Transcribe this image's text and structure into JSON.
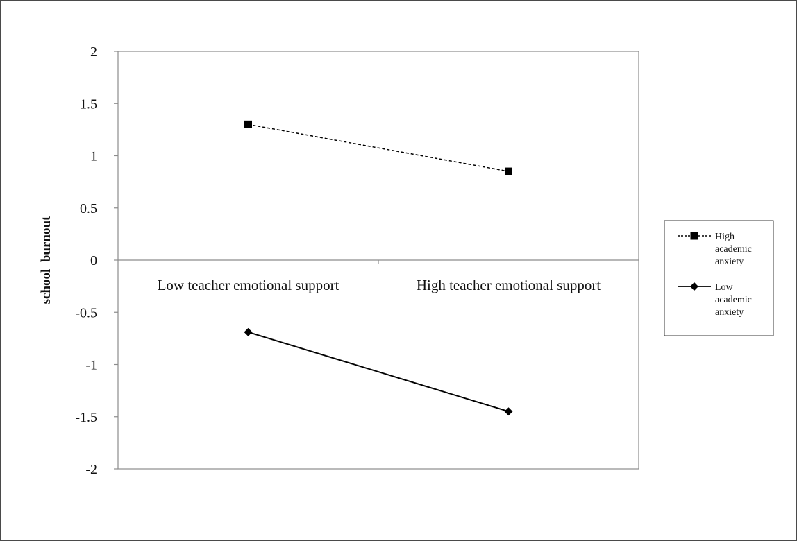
{
  "chart_data": {
    "type": "line",
    "title": "",
    "xlabel": "",
    "ylabel": "school  burnout",
    "categories": [
      "Low teacher emotional support",
      "High teacher emotional support"
    ],
    "ylim": [
      -2,
      2
    ],
    "yticks": [
      "2",
      "1.5",
      "1",
      "0.5",
      "0",
      "-0.5",
      "-1",
      "-1.5",
      "-2"
    ],
    "grid": false,
    "legend_position": "right",
    "series": [
      {
        "name_lines": [
          "High",
          "academic",
          "anxiety"
        ],
        "values": [
          1.3,
          0.85
        ],
        "line_style": "dashed",
        "marker": "square",
        "color": "#000000"
      },
      {
        "name_lines": [
          "Low",
          "academic",
          "anxiety"
        ],
        "values": [
          -0.69,
          -1.45
        ],
        "line_style": "solid",
        "marker": "diamond",
        "color": "#000000"
      }
    ]
  }
}
